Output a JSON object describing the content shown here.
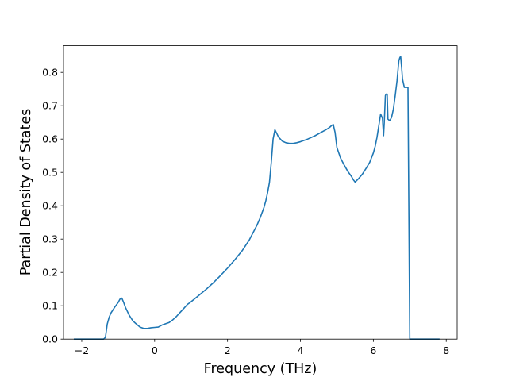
{
  "chart_data": {
    "type": "line",
    "title": "",
    "xlabel": "Frequency (THz)",
    "ylabel": "Partial Density of States",
    "xlim": [
      -2.5,
      8.3
    ],
    "ylim": [
      0.0,
      0.88
    ],
    "xticks": [
      -2,
      0,
      2,
      4,
      6,
      8
    ],
    "xtick_labels": [
      "−2",
      "0",
      "2",
      "4",
      "6",
      "8"
    ],
    "yticks": [
      0.0,
      0.1,
      0.2,
      0.3,
      0.4,
      0.5,
      0.6,
      0.7,
      0.8
    ],
    "ytick_labels": [
      "0.0",
      "0.1",
      "0.2",
      "0.3",
      "0.4",
      "0.5",
      "0.6",
      "0.7",
      "0.8"
    ],
    "grid": false,
    "legend": "none",
    "series": [
      {
        "color": "#1f77b4",
        "x": [
          -2.2,
          -1.4,
          -1.35,
          -1.3,
          -1.25,
          -1.2,
          -1.1,
          -1.0,
          -0.95,
          -0.9,
          -0.85,
          -0.8,
          -0.7,
          -0.6,
          -0.5,
          -0.4,
          -0.3,
          -0.2,
          -0.1,
          0.0,
          0.1,
          0.2,
          0.3,
          0.4,
          0.5,
          0.6,
          0.7,
          0.8,
          0.9,
          1.0,
          1.2,
          1.4,
          1.6,
          1.8,
          2.0,
          2.2,
          2.4,
          2.6,
          2.8,
          2.9,
          3.0,
          3.05,
          3.1,
          3.15,
          3.2,
          3.25,
          3.3,
          3.4,
          3.5,
          3.6,
          3.7,
          3.8,
          3.9,
          4.0,
          4.2,
          4.4,
          4.6,
          4.7,
          4.8,
          4.85,
          4.9,
          4.95,
          5.0,
          5.1,
          5.2,
          5.3,
          5.4,
          5.45,
          5.5,
          5.6,
          5.7,
          5.8,
          5.9,
          6.0,
          6.05,
          6.1,
          6.15,
          6.2,
          6.25,
          6.28,
          6.3,
          6.33,
          6.35,
          6.38,
          6.4,
          6.45,
          6.5,
          6.55,
          6.6,
          6.65,
          6.7,
          6.73,
          6.75,
          6.78,
          6.8,
          6.85,
          6.9,
          6.95,
          7.0,
          7.001,
          7.8
        ],
        "y": [
          0.0,
          0.0,
          0.005,
          0.045,
          0.065,
          0.078,
          0.095,
          0.11,
          0.12,
          0.123,
          0.11,
          0.095,
          0.072,
          0.055,
          0.045,
          0.036,
          0.032,
          0.032,
          0.034,
          0.035,
          0.036,
          0.042,
          0.046,
          0.05,
          0.058,
          0.068,
          0.08,
          0.092,
          0.104,
          0.112,
          0.13,
          0.148,
          0.168,
          0.19,
          0.213,
          0.238,
          0.265,
          0.298,
          0.34,
          0.365,
          0.395,
          0.415,
          0.44,
          0.47,
          0.53,
          0.6,
          0.628,
          0.606,
          0.594,
          0.589,
          0.587,
          0.587,
          0.589,
          0.592,
          0.6,
          0.61,
          0.622,
          0.628,
          0.635,
          0.64,
          0.644,
          0.62,
          0.575,
          0.543,
          0.522,
          0.503,
          0.488,
          0.478,
          0.471,
          0.482,
          0.495,
          0.512,
          0.53,
          0.558,
          0.578,
          0.605,
          0.64,
          0.675,
          0.662,
          0.61,
          0.65,
          0.73,
          0.735,
          0.735,
          0.66,
          0.655,
          0.665,
          0.69,
          0.73,
          0.775,
          0.835,
          0.845,
          0.848,
          0.81,
          0.78,
          0.755,
          0.755,
          0.755,
          0.0,
          0.0,
          0.0
        ]
      }
    ]
  }
}
